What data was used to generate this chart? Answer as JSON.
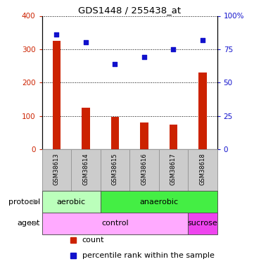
{
  "title": "GDS1448 / 255438_at",
  "samples": [
    "GSM38613",
    "GSM38614",
    "GSM38615",
    "GSM38616",
    "GSM38617",
    "GSM38618"
  ],
  "counts": [
    325,
    125,
    98,
    80,
    73,
    230
  ],
  "percentile_ranks": [
    86,
    80,
    64,
    69,
    75,
    82
  ],
  "ylim_left": [
    0,
    400
  ],
  "ylim_right": [
    0,
    100
  ],
  "yticks_left": [
    0,
    100,
    200,
    300,
    400
  ],
  "yticks_right": [
    0,
    25,
    50,
    75,
    100
  ],
  "yticklabels_right": [
    "0",
    "25",
    "50",
    "75",
    "100%"
  ],
  "bar_color": "#cc2200",
  "dot_color": "#1111cc",
  "protocol_labels": [
    {
      "text": "aerobic",
      "start": 0,
      "end": 2,
      "color": "#bbffbb"
    },
    {
      "text": "anaerobic",
      "start": 2,
      "end": 6,
      "color": "#44ee44"
    }
  ],
  "agent_labels": [
    {
      "text": "control",
      "start": 0,
      "end": 5,
      "color": "#ffaaff"
    },
    {
      "text": "sucrose",
      "start": 5,
      "end": 6,
      "color": "#ee44ee"
    }
  ],
  "protocol_row_label": "protocol",
  "agent_row_label": "agent",
  "legend_count_label": "count",
  "legend_pct_label": "percentile rank within the sample",
  "tick_color_left": "#cc2200",
  "tick_color_right": "#1111cc",
  "sample_box_color": "#cccccc",
  "sample_box_edge": "#999999"
}
